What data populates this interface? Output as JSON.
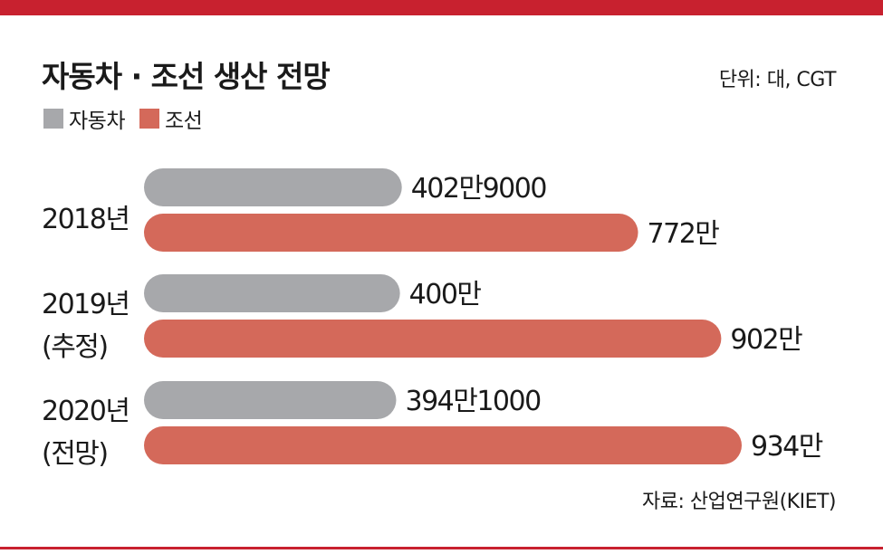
{
  "colors": {
    "accent": "#c8212f",
    "car": "#a7a8ab",
    "ship": "#d4695a"
  },
  "header": {
    "title": "자동차 · 조선 생산 전망",
    "unit": "단위: 대, CGT"
  },
  "legend": {
    "items": [
      {
        "label": "자동차",
        "color": "#a7a8ab"
      },
      {
        "label": "조선",
        "color": "#d4695a"
      }
    ]
  },
  "chart_data": {
    "type": "bar",
    "orientation": "horizontal",
    "title": "자동차 · 조선 생산 전망",
    "unit": "단위: 대, CGT",
    "categories": [
      {
        "line1": "2018년",
        "line2": ""
      },
      {
        "line1": "2019년",
        "line2": "(추정)"
      },
      {
        "line1": "2020년",
        "line2": "(전망)"
      }
    ],
    "series": [
      {
        "name": "자동차",
        "color": "#a7a8ab",
        "values": [
          4029000,
          4000000,
          3941000
        ],
        "labels": [
          "402만9000",
          "400만",
          "394만1000"
        ]
      },
      {
        "name": "조선",
        "color": "#d4695a",
        "values": [
          7720000,
          9020000,
          9340000
        ],
        "labels": [
          "772만",
          "902만",
          "934만"
        ]
      }
    ],
    "legend_position": "top-left",
    "grid": false
  },
  "footer": {
    "source": "자료: 산업연구원(KIET)"
  }
}
